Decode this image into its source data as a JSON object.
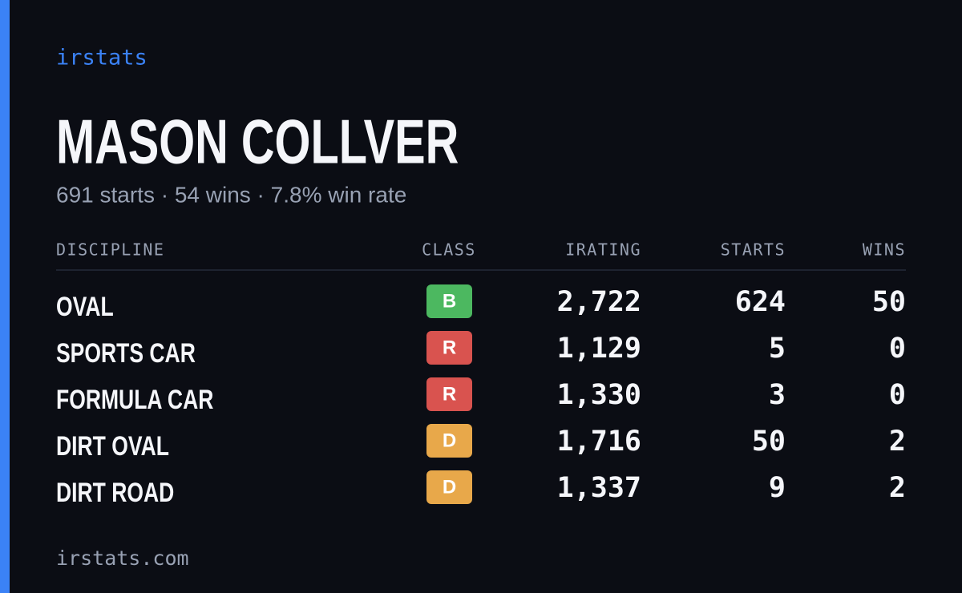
{
  "brand": "irstats",
  "name": "MASON COLLVER",
  "summary": "691 starts · 54 wins · 7.8% win rate",
  "table": {
    "headers": [
      "DISCIPLINE",
      "CLASS",
      "IRATING",
      "STARTS",
      "WINS"
    ],
    "rows": [
      [
        "OVAL",
        "B",
        "2,722",
        "624",
        "50"
      ],
      [
        "SPORTS CAR",
        "R",
        "1,129",
        "5",
        "0"
      ],
      [
        "FORMULA CAR",
        "R",
        "1,330",
        "3",
        "0"
      ],
      [
        "DIRT OVAL",
        "D",
        "1,716",
        "50",
        "2"
      ],
      [
        "DIRT ROAD",
        "D",
        "1,337",
        "9",
        "2"
      ]
    ],
    "badge_colors": {
      "B": "#4cb860",
      "R": "#d9534f",
      "D": "#e8a84a"
    }
  },
  "footer": "irstats.com"
}
